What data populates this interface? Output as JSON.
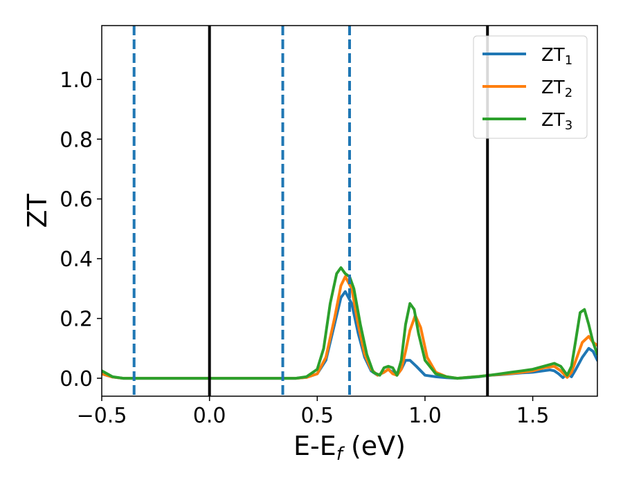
{
  "chart_data": {
    "type": "line",
    "title": "",
    "xlabel_main": "E-E",
    "xlabel_sub": "f",
    "xlabel_unit": " (eV)",
    "ylabel": "ZT",
    "xlim": [
      -0.5,
      1.8
    ],
    "ylim": [
      -0.06,
      1.18
    ],
    "xticks": [
      -0.5,
      0.0,
      0.5,
      1.0,
      1.5
    ],
    "xtick_labels": [
      "−0.5",
      "0.0",
      "0.5",
      "1.0",
      "1.5"
    ],
    "yticks": [
      0.0,
      0.2,
      0.4,
      0.6,
      0.8,
      1.0
    ],
    "ytick_labels": [
      "0.0",
      "0.2",
      "0.4",
      "0.6",
      "0.8",
      "1.0"
    ],
    "grid": false,
    "legend_position": "top-right",
    "vlines": [
      {
        "x": -0.35,
        "style": "dashed",
        "color": "#1f77b4"
      },
      {
        "x": 0.0,
        "style": "solid",
        "color": "#000000"
      },
      {
        "x": 0.34,
        "style": "dashed",
        "color": "#1f77b4"
      },
      {
        "x": 0.65,
        "style": "dashed",
        "color": "#1f77b4"
      },
      {
        "x": 1.29,
        "style": "solid",
        "color": "#000000"
      }
    ],
    "series": [
      {
        "name": "ZT",
        "sub": "1",
        "color": "#1f77b4",
        "x": [
          -0.5,
          -0.45,
          -0.4,
          0.0,
          0.4,
          0.45,
          0.5,
          0.54,
          0.58,
          0.61,
          0.63,
          0.66,
          0.69,
          0.72,
          0.75,
          0.78,
          0.81,
          0.83,
          0.85,
          0.87,
          0.89,
          0.91,
          0.93,
          0.96,
          1.0,
          1.05,
          1.1,
          1.15,
          1.2,
          1.25,
          1.3,
          1.35,
          1.4,
          1.45,
          1.5,
          1.55,
          1.58,
          1.6,
          1.62,
          1.64,
          1.66,
          1.68,
          1.7,
          1.73,
          1.76,
          1.78,
          1.8
        ],
        "y": [
          0.015,
          0.004,
          0.0,
          0.0,
          0.0,
          0.003,
          0.015,
          0.06,
          0.18,
          0.27,
          0.29,
          0.25,
          0.15,
          0.07,
          0.025,
          0.01,
          0.02,
          0.03,
          0.02,
          0.01,
          0.03,
          0.06,
          0.06,
          0.04,
          0.01,
          0.005,
          0.002,
          0.0,
          0.002,
          0.005,
          0.01,
          0.012,
          0.015,
          0.018,
          0.02,
          0.025,
          0.028,
          0.025,
          0.015,
          0.002,
          0.015,
          0.005,
          0.03,
          0.07,
          0.1,
          0.09,
          0.06
        ]
      },
      {
        "name": "ZT",
        "sub": "2",
        "color": "#ff7f0e",
        "x": [
          -0.5,
          -0.45,
          -0.4,
          0.0,
          0.4,
          0.45,
          0.5,
          0.54,
          0.58,
          0.61,
          0.63,
          0.66,
          0.69,
          0.72,
          0.75,
          0.78,
          0.81,
          0.83,
          0.85,
          0.87,
          0.89,
          0.91,
          0.93,
          0.955,
          0.98,
          1.01,
          1.05,
          1.1,
          1.15,
          1.2,
          1.25,
          1.3,
          1.35,
          1.4,
          1.45,
          1.5,
          1.55,
          1.6,
          1.63,
          1.66,
          1.68,
          1.7,
          1.73,
          1.76,
          1.78,
          1.8
        ],
        "y": [
          0.015,
          0.004,
          0.0,
          0.0,
          0.0,
          0.003,
          0.015,
          0.07,
          0.2,
          0.31,
          0.34,
          0.3,
          0.18,
          0.08,
          0.03,
          0.01,
          0.02,
          0.03,
          0.015,
          0.01,
          0.03,
          0.09,
          0.16,
          0.21,
          0.17,
          0.07,
          0.02,
          0.005,
          0.0,
          0.003,
          0.006,
          0.01,
          0.013,
          0.016,
          0.02,
          0.025,
          0.035,
          0.04,
          0.025,
          0.003,
          0.02,
          0.06,
          0.12,
          0.14,
          0.12,
          0.11
        ]
      },
      {
        "name": "ZT",
        "sub": "3",
        "color": "#2ca02c",
        "x": [
          -0.5,
          -0.45,
          -0.4,
          0.0,
          0.4,
          0.45,
          0.5,
          0.53,
          0.56,
          0.59,
          0.61,
          0.63,
          0.65,
          0.67,
          0.7,
          0.73,
          0.76,
          0.79,
          0.81,
          0.83,
          0.85,
          0.87,
          0.89,
          0.91,
          0.93,
          0.95,
          0.97,
          1.0,
          1.05,
          1.1,
          1.15,
          1.2,
          1.25,
          1.3,
          1.35,
          1.4,
          1.45,
          1.5,
          1.55,
          1.6,
          1.63,
          1.66,
          1.68,
          1.7,
          1.72,
          1.74,
          1.76,
          1.78,
          1.8
        ],
        "y": [
          0.025,
          0.005,
          0.0,
          0.0,
          0.0,
          0.005,
          0.03,
          0.1,
          0.25,
          0.35,
          0.37,
          0.35,
          0.34,
          0.3,
          0.18,
          0.08,
          0.02,
          0.01,
          0.035,
          0.04,
          0.035,
          0.01,
          0.06,
          0.18,
          0.25,
          0.23,
          0.15,
          0.06,
          0.015,
          0.005,
          0.0,
          0.003,
          0.006,
          0.01,
          0.015,
          0.02,
          0.025,
          0.03,
          0.04,
          0.05,
          0.04,
          0.01,
          0.04,
          0.13,
          0.22,
          0.23,
          0.18,
          0.12,
          0.08
        ]
      }
    ]
  }
}
